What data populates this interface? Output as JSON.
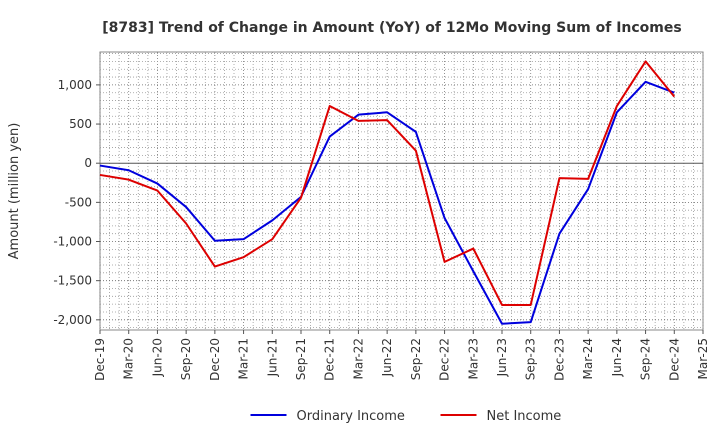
{
  "chart_data": {
    "type": "line",
    "title": "[8783]  Trend of Change in Amount (YoY) of 12Mo Moving Sum of Incomes",
    "ylabel": "Amount (million yen)",
    "xlabel": "",
    "ylim": [
      -2130,
      1420
    ],
    "yticks": [
      1000,
      500,
      0,
      -500,
      -1000,
      -1500,
      -2000
    ],
    "ytick_labels": [
      "1,000",
      "500",
      "0",
      "-500",
      "-1,000",
      "-1,500",
      "-2,000"
    ],
    "categories": [
      "Dec-19",
      "Mar-20",
      "Jun-20",
      "Sep-20",
      "Dec-20",
      "Mar-21",
      "Jun-21",
      "Sep-21",
      "Dec-21",
      "Mar-22",
      "Jun-22",
      "Sep-22",
      "Dec-22",
      "Mar-23",
      "Jun-23",
      "Sep-23",
      "Dec-23",
      "Mar-24",
      "Jun-24",
      "Sep-24",
      "Dec-24",
      "Mar-25"
    ],
    "grid": true,
    "legend_position": "bottom",
    "series": [
      {
        "name": "Ordinary Income",
        "color": "#0000dd",
        "values": [
          -30,
          -90,
          -260,
          -560,
          -990,
          -970,
          -730,
          -430,
          340,
          620,
          650,
          400,
          -700,
          -1380,
          -2050,
          -2030,
          -900,
          -330,
          650,
          1040,
          900,
          null
        ]
      },
      {
        "name": "Net Income",
        "color": "#dd0000",
        "values": [
          -150,
          -210,
          -350,
          -770,
          -1320,
          -1200,
          -970,
          -440,
          730,
          540,
          550,
          160,
          -1260,
          -1090,
          -1810,
          -1810,
          -190,
          -200,
          730,
          1300,
          850,
          null
        ]
      }
    ]
  }
}
